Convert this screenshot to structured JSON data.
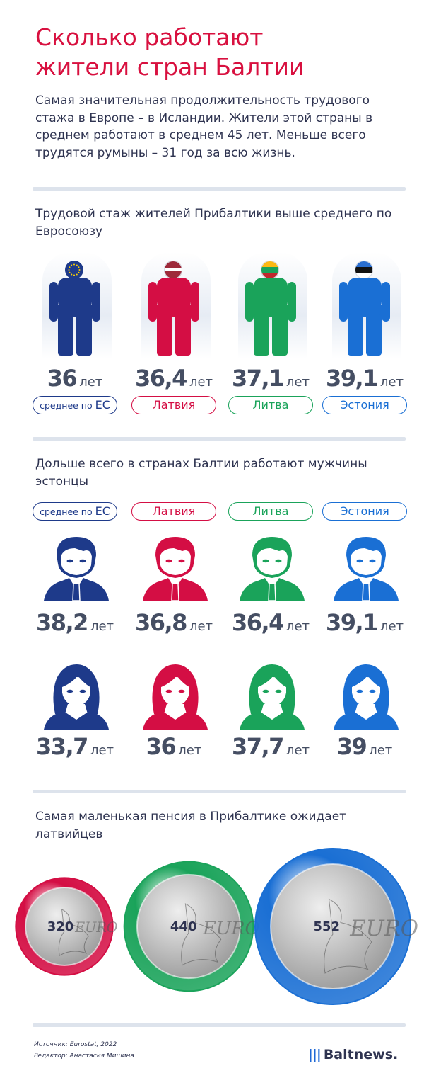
{
  "title": {
    "line1": "Сколько работают",
    "line2": "жители стран Балтии"
  },
  "intro": "Самая значительная продолжительность трудового стажа в Европе – в Исландии. Жители этой страны в среднем работают в среднем 45 лет. Меньше всего трудятся румыны – 31 год за всю жизнь.",
  "section1": {
    "title": "Трудовой стаж жителей Прибалтики выше среднего по Евросоюзу",
    "items": [
      {
        "label_prefix": "среднее по ",
        "label_main": "ЕС",
        "value": "36",
        "unit": "лет",
        "color": "#1e3a8a"
      },
      {
        "label_prefix": "",
        "label_main": "Латвия",
        "value": "36,4",
        "unit": "лет",
        "color": "#d40e44"
      },
      {
        "label_prefix": "",
        "label_main": "Литва",
        "value": "37,1",
        "unit": "лет",
        "color": "#1aa35a"
      },
      {
        "label_prefix": "",
        "label_main": "Эстония",
        "value": "39,1",
        "unit": "лет",
        "color": "#1a6fd4"
      }
    ]
  },
  "section2": {
    "title": "Дольше всего в странах Балтии работают мужчины эстонцы",
    "items": [
      {
        "label_prefix": "среднее по ",
        "label_main": "ЕС",
        "men": "38,2",
        "women": "33,7",
        "unit": "лет",
        "color": "#1e3a8a"
      },
      {
        "label_prefix": "",
        "label_main": "Латвия",
        "men": "36,8",
        "women": "36",
        "unit": "лет",
        "color": "#d40e44"
      },
      {
        "label_prefix": "",
        "label_main": "Литва",
        "men": "36,4",
        "women": "37,7",
        "unit": "лет",
        "color": "#1aa35a"
      },
      {
        "label_prefix": "",
        "label_main": "Эстония",
        "men": "39,1",
        "women": "39",
        "unit": "лет",
        "color": "#1a6fd4"
      }
    ]
  },
  "section3": {
    "title": "Самая маленькая пенсия в Прибалтике ожидает латвийцев",
    "coins": [
      {
        "value": "320",
        "color": "#d40e44"
      },
      {
        "value": "440",
        "color": "#1aa35a"
      },
      {
        "value": "552",
        "color": "#1a6fd4"
      }
    ]
  },
  "footer": {
    "source": "Источник: Eurostat, 2022",
    "editor": "Редактор: Анастасия Мишина",
    "logo_text": "Baltnews."
  },
  "chart_data": [
    {
      "type": "bar",
      "title": "Трудовой стаж жителей Прибалтики выше среднего по Евросоюзу",
      "categories": [
        "среднее по ЕС",
        "Латвия",
        "Литва",
        "Эстония"
      ],
      "values": [
        36,
        36.4,
        37.1,
        39.1
      ]
    },
    {
      "type": "bar",
      "title": "Дольше всего в странах Балтии работают мужчины эстонцы",
      "categories": [
        "среднее по ЕС",
        "Латвия",
        "Литва",
        "Эстония"
      ],
      "series": [
        {
          "values": [
            38.2,
            36.8,
            36.4,
            39.1
          ]
        },
        {
          "values": [
            33.7,
            36,
            37.7,
            39
          ]
        }
      ]
    },
    {
      "type": "bar",
      "title": "Самая маленькая пенсия в Прибалтике ожидает латвийцев",
      "categories": [
        "Латвия",
        "Литва",
        "Эстония"
      ],
      "values": [
        320,
        440,
        552
      ]
    }
  ]
}
